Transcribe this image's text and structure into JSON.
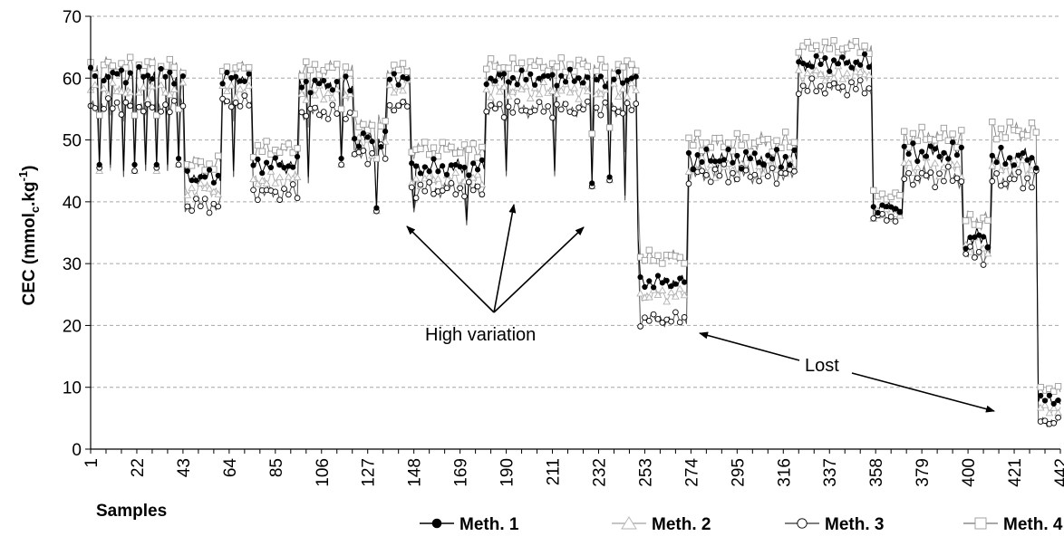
{
  "chart_data": {
    "type": "line",
    "xlabel": "Samples",
    "ylabel_parts": [
      "CEC (mmol",
      "c",
      ".kg",
      "-1",
      ")"
    ],
    "ylim": [
      0,
      70
    ],
    "yticks": [
      0,
      10,
      20,
      30,
      40,
      50,
      60,
      70
    ],
    "xlim": [
      1,
      442
    ],
    "xticks": [
      1,
      22,
      43,
      64,
      85,
      106,
      127,
      148,
      169,
      190,
      211,
      232,
      253,
      274,
      295,
      316,
      337,
      358,
      379,
      400,
      421,
      442
    ],
    "grid": "horizontal dashed",
    "legend_position": "bottom-right",
    "segments": [
      {
        "start": 1,
        "end": 43,
        "values": [
          60.5,
          58.0,
          55.5,
          62.0
        ],
        "spread": 1.2
      },
      {
        "start": 44,
        "end": 60,
        "values": [
          44.0,
          42.0,
          39.5,
          46.0
        ],
        "spread": 1.2
      },
      {
        "start": 61,
        "end": 74,
        "values": [
          60.0,
          58.0,
          56.0,
          61.5
        ],
        "spread": 1.0
      },
      {
        "start": 75,
        "end": 95,
        "values": [
          46.0,
          43.5,
          41.5,
          48.5
        ],
        "spread": 1.2
      },
      {
        "start": 96,
        "end": 120,
        "values": [
          59.0,
          57.5,
          54.5,
          61.5
        ],
        "spread": 1.2
      },
      {
        "start": 121,
        "end": 135,
        "values": [
          50.0,
          49.0,
          47.5,
          52.5
        ],
        "spread": 1.5
      },
      {
        "start": 136,
        "end": 146,
        "values": [
          60.0,
          58.5,
          55.5,
          61.5
        ],
        "spread": 1.0
      },
      {
        "start": 147,
        "end": 180,
        "values": [
          45.5,
          43.5,
          42.0,
          48.5
        ],
        "spread": 1.2
      },
      {
        "start": 181,
        "end": 250,
        "values": [
          60.0,
          58.0,
          55.0,
          62.0
        ],
        "spread": 1.2
      },
      {
        "start": 251,
        "end": 272,
        "values": [
          27.0,
          25.0,
          21.0,
          31.0
        ],
        "spread": 1.0
      },
      {
        "start": 273,
        "end": 322,
        "values": [
          47.0,
          45.5,
          44.5,
          49.5
        ],
        "spread": 1.5
      },
      {
        "start": 323,
        "end": 356,
        "values": [
          62.5,
          60.5,
          58.5,
          65.0
        ],
        "spread": 1.2
      },
      {
        "start": 357,
        "end": 370,
        "values": [
          39.0,
          38.0,
          37.5,
          41.0
        ],
        "spread": 0.8
      },
      {
        "start": 371,
        "end": 397,
        "values": [
          48.0,
          45.5,
          44.0,
          50.5
        ],
        "spread": 1.5
      },
      {
        "start": 398,
        "end": 410,
        "values": [
          34.0,
          32.5,
          31.5,
          37.0
        ],
        "spread": 1.5
      },
      {
        "start": 411,
        "end": 431,
        "values": [
          47.0,
          45.5,
          43.5,
          51.5
        ],
        "spread": 1.5
      },
      {
        "start": 432,
        "end": 442,
        "values": [
          8.0,
          6.5,
          4.5,
          9.5
        ],
        "spread": 0.8
      }
    ],
    "dips": [
      {
        "x": 5,
        "values": [
          46,
          45,
          45.5,
          54
        ]
      },
      {
        "x": 10,
        "values": [
          46,
          45,
          45.5,
          54
        ]
      },
      {
        "x": 16,
        "values": [
          45,
          44,
          44,
          53
        ]
      },
      {
        "x": 21,
        "values": [
          46,
          45,
          45,
          54
        ]
      },
      {
        "x": 26,
        "values": [
          46,
          45,
          45,
          54
        ]
      },
      {
        "x": 31,
        "values": [
          46,
          45,
          45.5,
          54
        ]
      },
      {
        "x": 36,
        "values": [
          46,
          45,
          45,
          54
        ]
      },
      {
        "x": 41,
        "values": [
          47,
          46,
          46,
          55
        ]
      },
      {
        "x": 66,
        "values": [
          45,
          44,
          44,
          53
        ]
      },
      {
        "x": 100,
        "values": [
          44,
          43,
          43,
          52
        ]
      },
      {
        "x": 115,
        "values": [
          47,
          46,
          46,
          55
        ]
      },
      {
        "x": 131,
        "values": [
          39,
          38.5,
          38.5,
          47
        ]
      },
      {
        "x": 148,
        "values": [
          39,
          38.5,
          38.3,
          47
        ]
      },
      {
        "x": 172,
        "values": [
          37,
          36.5,
          36.2,
          44
        ]
      },
      {
        "x": 190,
        "values": [
          45,
          44,
          44.2,
          53
        ]
      },
      {
        "x": 212,
        "values": [
          45,
          44,
          44.2,
          53
        ]
      },
      {
        "x": 229,
        "values": [
          43,
          42.5,
          42.5,
          51
        ]
      },
      {
        "x": 237,
        "values": [
          44,
          43.5,
          43.5,
          52
        ]
      },
      {
        "x": 244,
        "values": [
          41,
          40.5,
          40.2,
          48
        ]
      },
      {
        "x": 250,
        "values": [
          34,
          33.5,
          33,
          41
        ]
      }
    ],
    "series": [
      {
        "name": "Meth. 1",
        "marker": "filled-circle",
        "color": "#000000"
      },
      {
        "name": "Meth. 2",
        "marker": "open-triangle",
        "color": "#b3b3b3"
      },
      {
        "name": "Meth. 3",
        "marker": "open-circle",
        "color": "#000000"
      },
      {
        "name": "Meth. 4",
        "marker": "open-square",
        "color": "#999999"
      }
    ],
    "annotations": [
      {
        "text": "High variation",
        "target": "spikes"
      },
      {
        "text": "Lost",
        "target": "samples 274 and 431"
      }
    ]
  }
}
